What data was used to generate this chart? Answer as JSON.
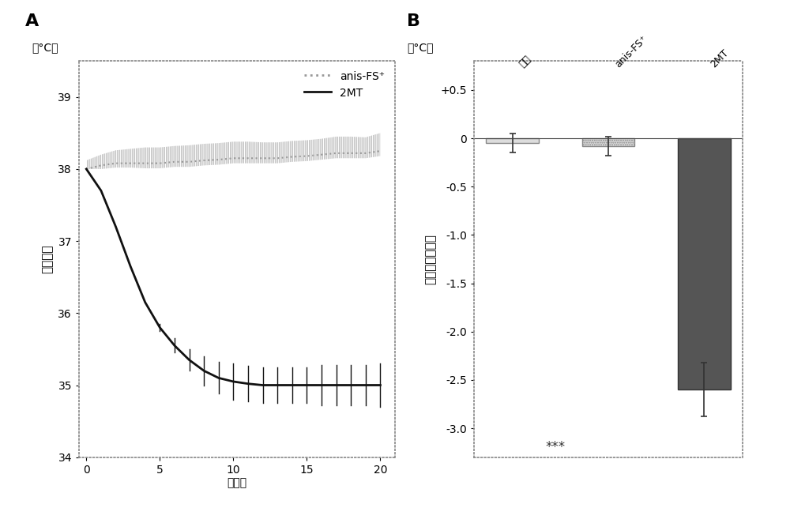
{
  "panel_A": {
    "xlabel": "（分）",
    "ylabel": "体表温度",
    "ylabel_unit": "（°C）",
    "xlim": [
      -0.5,
      21
    ],
    "ylim": [
      34,
      39.5
    ],
    "yticks": [
      34,
      35,
      36,
      37,
      38,
      39
    ],
    "xticks": [
      0,
      5,
      10,
      15,
      20
    ],
    "anis_x": [
      0,
      1,
      2,
      3,
      4,
      5,
      6,
      7,
      8,
      9,
      10,
      11,
      12,
      13,
      14,
      15,
      16,
      17,
      18,
      19,
      20
    ],
    "anis_y": [
      38.0,
      38.05,
      38.08,
      38.08,
      38.08,
      38.08,
      38.1,
      38.1,
      38.12,
      38.13,
      38.15,
      38.15,
      38.15,
      38.15,
      38.17,
      38.18,
      38.2,
      38.22,
      38.22,
      38.22,
      38.25
    ],
    "anis_err_upper": [
      0.12,
      0.15,
      0.18,
      0.2,
      0.22,
      0.22,
      0.22,
      0.23,
      0.23,
      0.23,
      0.23,
      0.23,
      0.22,
      0.22,
      0.22,
      0.22,
      0.22,
      0.23,
      0.23,
      0.22,
      0.25
    ],
    "anis_err_lower": [
      0.0,
      0.05,
      0.06,
      0.06,
      0.07,
      0.07,
      0.07,
      0.07,
      0.07,
      0.07,
      0.07,
      0.07,
      0.07,
      0.07,
      0.07,
      0.07,
      0.07,
      0.07,
      0.07,
      0.07,
      0.07
    ],
    "mt2_x": [
      0,
      1,
      2,
      3,
      4,
      5,
      6,
      7,
      8,
      9,
      10,
      11,
      12,
      13,
      14,
      15,
      16,
      17,
      18,
      19,
      20
    ],
    "mt2_y": [
      38.0,
      37.7,
      37.2,
      36.65,
      36.15,
      35.8,
      35.55,
      35.35,
      35.2,
      35.1,
      35.05,
      35.02,
      35.0,
      35.0,
      35.0,
      35.0,
      35.0,
      35.0,
      35.0,
      35.0,
      35.0
    ],
    "mt2_err": [
      0.0,
      0.0,
      0.0,
      0.0,
      0.0,
      0.05,
      0.1,
      0.15,
      0.2,
      0.22,
      0.25,
      0.25,
      0.25,
      0.25,
      0.25,
      0.25,
      0.28,
      0.28,
      0.28,
      0.28,
      0.3
    ],
    "legend_anis": "anis-FS⁺",
    "legend_2mt": "2MT",
    "anis_color": "#999999",
    "mt2_color": "#111111"
  },
  "panel_B": {
    "ylabel": "体表温度的变化",
    "ylabel_unit": "（°C）",
    "ylim": [
      -3.3,
      0.8
    ],
    "yticks": [
      0.5,
      0.0,
      -0.5,
      -1.0,
      -1.5,
      -2.0,
      -2.5,
      -3.0
    ],
    "ytick_labels": [
      "+0.5",
      "0",
      "-0.5",
      "-1.0",
      "-1.5",
      "-2.0",
      "-2.5",
      "-3.0"
    ],
    "categories": [
      "对照",
      "anis-FS⁺",
      "2MT"
    ],
    "values": [
      -0.05,
      -0.08,
      -2.6
    ],
    "errors": [
      0.1,
      0.1,
      0.28
    ],
    "bar_colors": [
      "#dddddd",
      "#dddddd",
      "#555555"
    ],
    "bar_hatches": [
      "",
      "......",
      ""
    ],
    "bar_edgecolors": [
      "#888888",
      "#888888",
      "#333333"
    ],
    "significance": "***",
    "sig_x": 0.45,
    "sig_y": -3.2
  },
  "bg_color": "#ffffff",
  "font_size": 10,
  "label_fontsize": 11,
  "spine_color": "#888888",
  "spine_ls": ":"
}
